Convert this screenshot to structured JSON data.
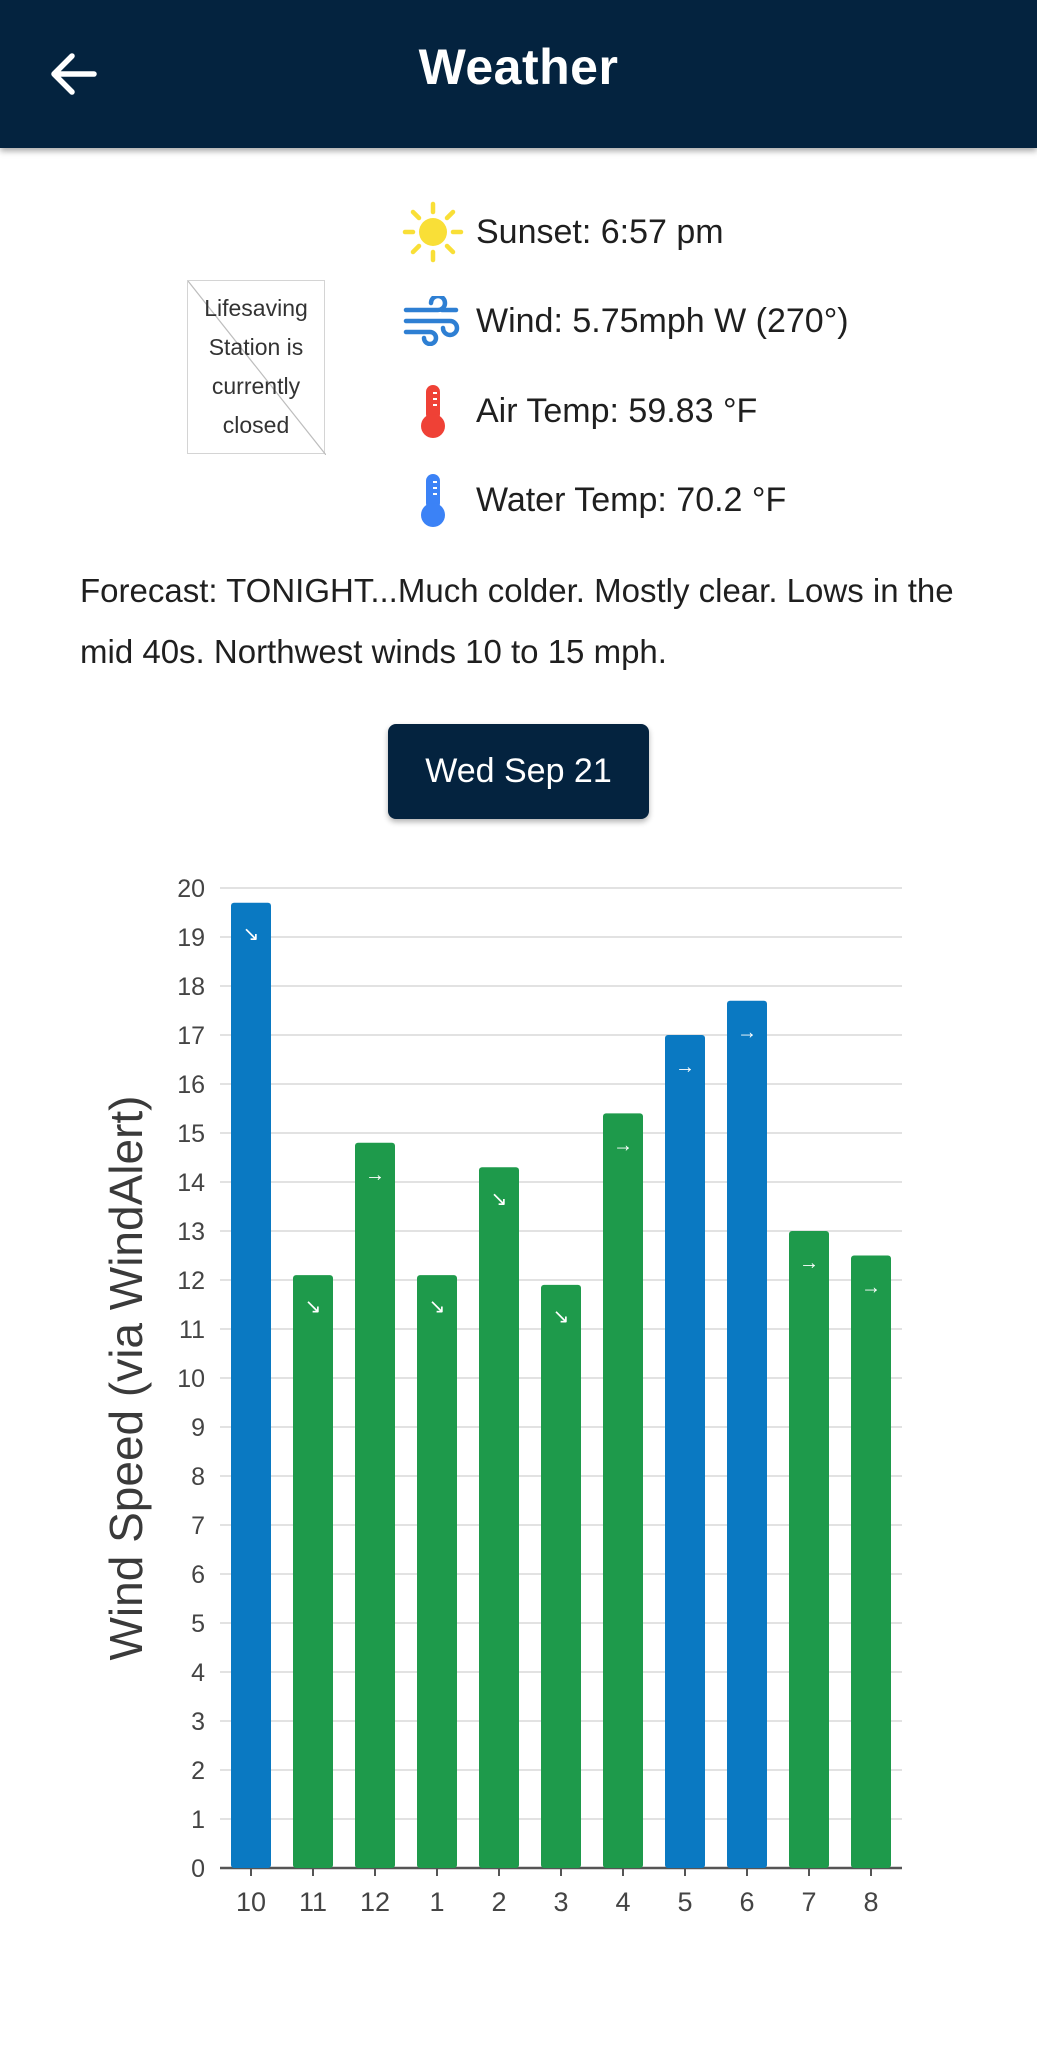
{
  "header": {
    "title": "Weather"
  },
  "station_status": {
    "image_alt_lines": [
      "Lifesaving",
      "Station is",
      "currently",
      "closed"
    ]
  },
  "conditions": [
    {
      "icon": "sun-icon",
      "text": "Sunset: 6:57 pm"
    },
    {
      "icon": "wind-icon",
      "text": "Wind: 5.75mph W (270°)"
    },
    {
      "icon": "thermometer-hot-icon",
      "text": "Air Temp: 59.83 °F"
    },
    {
      "icon": "thermometer-cold-icon",
      "text": "Water Temp: 70.2 °F"
    }
  ],
  "forecast": "Forecast: TONIGHT...Much colder. Mostly clear. Lows in the mid 40s. Northwest winds 10 to 15 mph.",
  "date_button": {
    "label": "Wed Sep 21"
  },
  "colors": {
    "header_bg": "#04233f",
    "bar_blue": "#0a79c2",
    "bar_green": "#1e9a4b",
    "sun": "#f9df37",
    "wind": "#2e7fd3",
    "hot": "#ef4136",
    "cold": "#3b82f6"
  },
  "chart_data": {
    "type": "bar",
    "ylabel": "Wind Speed (via WindAlert)",
    "xlabel": "",
    "ylim": [
      0,
      20
    ],
    "yticks": [
      0,
      1,
      2,
      3,
      4,
      5,
      6,
      7,
      8,
      9,
      10,
      11,
      12,
      13,
      14,
      15,
      16,
      17,
      18,
      19,
      20
    ],
    "categories": [
      "10",
      "11",
      "12",
      "1",
      "2",
      "3",
      "4",
      "5",
      "6",
      "7",
      "8"
    ],
    "values": [
      19.7,
      12.1,
      14.8,
      12.1,
      14.3,
      11.9,
      15.4,
      17.0,
      17.7,
      13.0,
      12.5
    ],
    "bar_colors": [
      "blue",
      "green",
      "green",
      "green",
      "green",
      "green",
      "green",
      "blue",
      "blue",
      "green",
      "green"
    ],
    "direction_arrows": [
      "↘",
      "↘",
      "→",
      "↘",
      "↘",
      "↘",
      "→",
      "→",
      "→",
      "→",
      "→"
    ],
    "grid": true
  }
}
